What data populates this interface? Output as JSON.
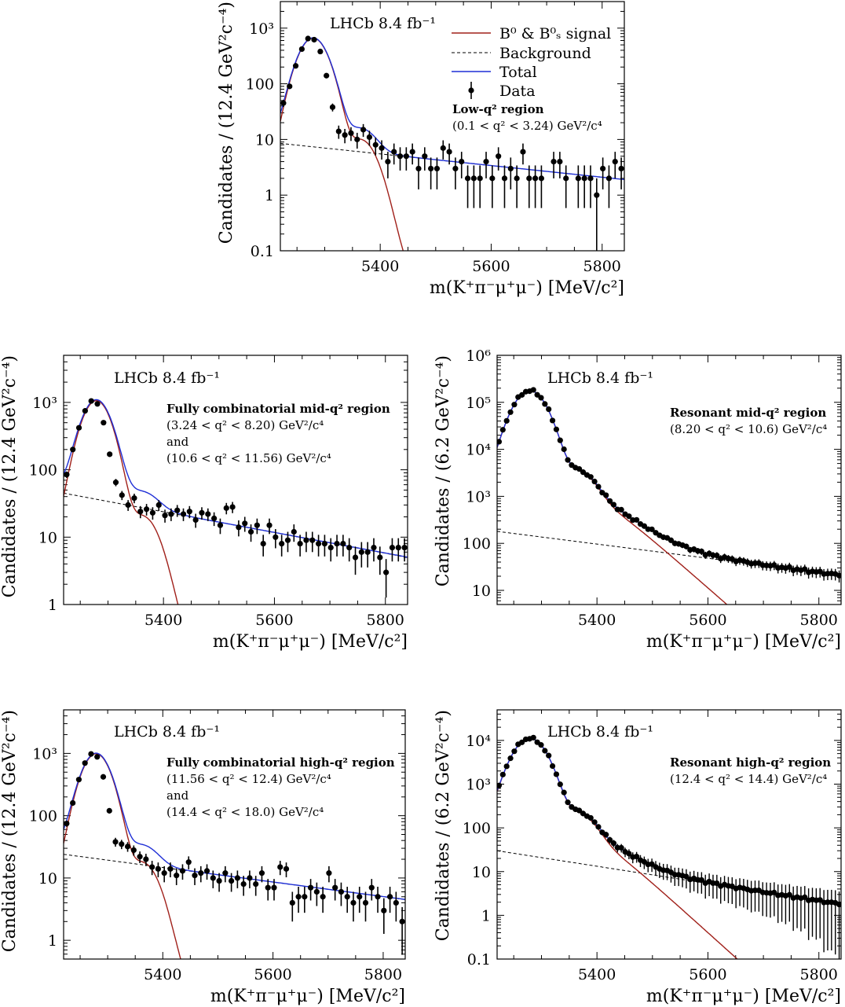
{
  "series_colors": {
    "signal": "#a0201a",
    "background": "#000000",
    "total": "#1f2fd6",
    "data": "#000000"
  },
  "legend": {
    "signal": "B⁰ & B⁰ₛ signal",
    "background": "Background",
    "total": "Total",
    "data": "Data"
  },
  "chart_data": [
    {
      "type": "scatter",
      "id": "low",
      "log_y": true,
      "xlim": [
        5220,
        5840
      ],
      "ylim": [
        0.1,
        3000
      ],
      "xticks": [
        "5400",
        "5600",
        "5800"
      ],
      "yticks": [
        "0.1",
        "1",
        "10",
        "100",
        "10³"
      ],
      "xlabel": "m(K⁺π⁻μ⁺μ⁻) [MeV/c²]",
      "ylabel": "Candidates / (12.4 GeV²c⁻⁴)",
      "experiment": "LHCb 8.4 fb⁻¹",
      "region_title": "Low-q² region",
      "region_lines": [
        "(0.1 < q² < 3.24) GeV²/c⁴"
      ],
      "bkg": {
        "a": 8.5,
        "b": 1.9
      },
      "signal": {
        "peak": 660,
        "sigma": 22,
        "tail_scale": 3,
        "tail_lambda": 18
      },
      "data": [
        45,
        90,
        210,
        420,
        650,
        620,
        380,
        140,
        38,
        14,
        12,
        13,
        10,
        15,
        11,
        8,
        7,
        4,
        6,
        5,
        5,
        6,
        3,
        5,
        3,
        3,
        7,
        6,
        3,
        4,
        2,
        2,
        2,
        4,
        2,
        5,
        2,
        3,
        2,
        6,
        2,
        2,
        2,
        0,
        4,
        4,
        2,
        0,
        2,
        2,
        2,
        1,
        3,
        2,
        4,
        3
      ]
    },
    {
      "type": "scatter",
      "id": "mid-comb",
      "log_y": true,
      "xlim": [
        5220,
        5840
      ],
      "ylim": [
        1,
        5000
      ],
      "xticks": [
        "5400",
        "5600",
        "5800"
      ],
      "yticks": [
        "1",
        "10",
        "100",
        "10³"
      ],
      "xlabel": "m(K⁺π⁻μ⁺μ⁻) [MeV/c²]",
      "ylabel": "Candidates / (12.4 GeV²c⁻⁴)",
      "experiment": "LHCb 8.4 fb⁻¹",
      "region_title": "Fully combinatorial mid-q² region",
      "region_lines": [
        "(3.24 < q² < 8.20) GeV²/c⁴",
        "and",
        "(10.6 < q² < 11.56) GeV²/c⁴"
      ],
      "bkg": {
        "a": 45,
        "b": 5
      },
      "signal": {
        "peak": 1050,
        "sigma": 22,
        "tail_scale": 12,
        "tail_lambda": 18
      },
      "data": [
        85,
        200,
        420,
        750,
        1050,
        950,
        500,
        170,
        65,
        42,
        30,
        38,
        24,
        26,
        23,
        30,
        21,
        22,
        25,
        22,
        24,
        18,
        23,
        22,
        19,
        15,
        27,
        28,
        14,
        16,
        12,
        15,
        8,
        15,
        10,
        8,
        9,
        12,
        8,
        9,
        9,
        8,
        8,
        7,
        8,
        8,
        7,
        5,
        6,
        6,
        7,
        5,
        3,
        7,
        7,
        7
      ]
    },
    {
      "type": "scatter",
      "id": "mid-res",
      "log_y": true,
      "xlim": [
        5220,
        5840
      ],
      "ylim": [
        5,
        1000000
      ],
      "xticks": [
        "5400",
        "5600",
        "5800"
      ],
      "yticks": [
        "10",
        "100",
        "10³",
        "10⁴",
        "10⁵",
        "10⁶"
      ],
      "xlabel": "m(K⁺π⁻μ⁺μ⁻) [MeV/c²]",
      "ylabel": "Candidates / (6.2 GeV²c⁻⁴)",
      "experiment": "LHCb 8.4 fb⁻¹",
      "region_title": "Resonant mid-q² region",
      "region_lines": [
        "(8.20 < q² < 10.6) GeV²/c⁴"
      ],
      "bkg": {
        "a": 180,
        "b": 21
      },
      "signal": {
        "peak": 175000,
        "sigma": 24,
        "tail_scale": 2400,
        "tail_lambda": 42
      }
    },
    {
      "type": "scatter",
      "id": "high-comb",
      "log_y": true,
      "xlim": [
        5220,
        5840
      ],
      "ylim": [
        0.5,
        5000
      ],
      "xticks": [
        "5400",
        "5600",
        "5800"
      ],
      "yticks": [
        "1",
        "10",
        "100",
        "10³"
      ],
      "xlabel": "m(K⁺π⁻μ⁺μ⁻) [MeV/c²]",
      "ylabel": "Candidates / (12.4 GeV²c⁻⁴)",
      "experiment": "LHCb 8.4 fb⁻¹",
      "region_title": "Fully combinatorial high-q² region",
      "region_lines": [
        "(11.56 < q² < 12.4) GeV²/c⁴",
        "and",
        "(14.4 < q² < 18.0) GeV²/c⁴"
      ],
      "bkg": {
        "a": 24,
        "b": 4.5
      },
      "signal": {
        "peak": 980,
        "sigma": 22,
        "tail_scale": 9,
        "tail_lambda": 18
      },
      "data": [
        75,
        160,
        380,
        700,
        980,
        880,
        420,
        120,
        38,
        35,
        32,
        28,
        22,
        20,
        15,
        14,
        12,
        14,
        11,
        13,
        18,
        11,
        12,
        13,
        10,
        9,
        12,
        9,
        10,
        8,
        10,
        8,
        12,
        7,
        7,
        15,
        14,
        4,
        5,
        5,
        7,
        6,
        5,
        12,
        7,
        6,
        5,
        4,
        5,
        4,
        7,
        5,
        3,
        5,
        4,
        2
      ]
    },
    {
      "type": "scatter",
      "id": "high-res",
      "log_y": true,
      "xlim": [
        5220,
        5840
      ],
      "ylim": [
        0.1,
        50000
      ],
      "xticks": [
        "5400",
        "5600",
        "5800"
      ],
      "yticks": [
        "0.1",
        "1",
        "10",
        "100",
        "10³",
        "10⁴"
      ],
      "xlabel": "m(K⁺π⁻μ⁺μ⁻) [MeV/c²]",
      "ylabel": "Candidates / (6.2 GeV²c⁻⁴)",
      "experiment": "LHCb 8.4 fb⁻¹",
      "region_title": "Resonant high-q² region",
      "region_lines": [
        "(12.4 < q² < 14.4) GeV²/c⁴"
      ],
      "bkg": {
        "a": 30,
        "b": 1.8
      },
      "signal": {
        "peak": 11000,
        "sigma": 24,
        "tail_scale": 150,
        "tail_lambda": 38
      }
    }
  ]
}
